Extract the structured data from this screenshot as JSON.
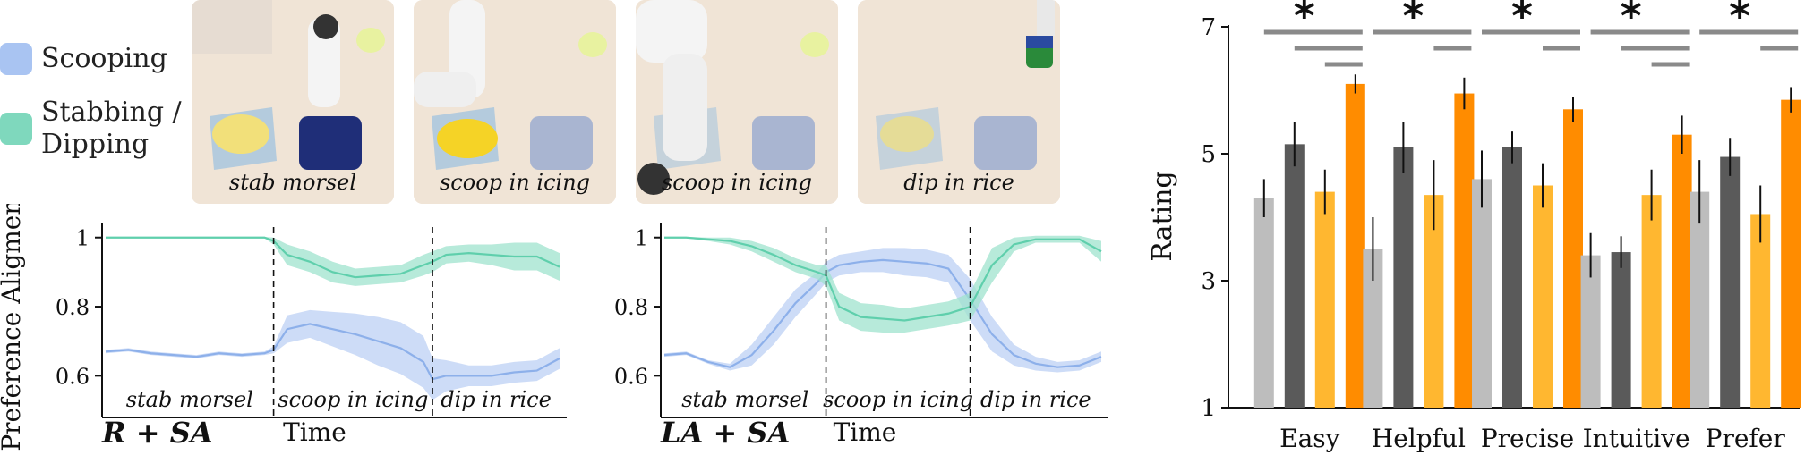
{
  "legend": {
    "scooping_label": "Scooping",
    "stabbing_line1": "Stabbing /",
    "stabbing_line2": "Dipping",
    "scooping_color": "#a9c4f2",
    "stabbing_color": "#7fd8bd"
  },
  "photos": [
    {
      "caption": "stab morsel"
    },
    {
      "caption": "scoop in icing"
    },
    {
      "caption": "scoop in icing"
    },
    {
      "caption": "dip in rice"
    }
  ],
  "line_plots": {
    "ylabel": "Preference Aligment",
    "xlabel": "Time",
    "panels": [
      {
        "method_label": "R + SA",
        "phase_labels": [
          "stab morsel",
          "scoop in icing",
          "dip in rice"
        ]
      },
      {
        "method_label": "LA + SA",
        "phase_labels": [
          "stab morsel",
          "scoop in icing",
          "dip in rice"
        ]
      }
    ]
  },
  "colors": {
    "scoop_line": "#8db0ea",
    "scoop_band": "#bcd0f4",
    "stab_line": "#5fcfac",
    "stab_band": "#9fe3cd",
    "bar_light_gray": "#bdbdbd",
    "bar_dark_gray": "#5a5a5a",
    "bar_light_orange": "#ffb730",
    "bar_dark_orange": "#ff8c00",
    "sig_line": "#8a8a8a"
  },
  "chart_data": [
    {
      "type": "line",
      "panel": "R + SA",
      "xlabel": "Time",
      "ylabel": "Preference Aligment",
      "ylim": [
        0.5,
        1.02
      ],
      "yticks": [
        0.6,
        0.8,
        1
      ],
      "ytick_labels": [
        "0.6",
        "0.8",
        "1"
      ],
      "phase_boundaries": [
        0.37,
        0.72
      ],
      "x": [
        0,
        0.05,
        0.1,
        0.15,
        0.2,
        0.25,
        0.3,
        0.35,
        0.37,
        0.4,
        0.45,
        0.5,
        0.55,
        0.6,
        0.65,
        0.7,
        0.72,
        0.75,
        0.8,
        0.85,
        0.9,
        0.95,
        1.0
      ],
      "series": [
        {
          "key": "scooping",
          "values": [
            0.67,
            0.675,
            0.665,
            0.66,
            0.655,
            0.665,
            0.66,
            0.665,
            0.675,
            0.735,
            0.75,
            0.735,
            0.72,
            0.7,
            0.68,
            0.64,
            0.59,
            0.6,
            0.6,
            0.6,
            0.61,
            0.615,
            0.65
          ],
          "band": [
            0.005,
            0.005,
            0.005,
            0.005,
            0.005,
            0.005,
            0.005,
            0.005,
            0.01,
            0.04,
            0.04,
            0.05,
            0.06,
            0.07,
            0.075,
            0.075,
            0.06,
            0.045,
            0.03,
            0.03,
            0.03,
            0.03,
            0.03
          ]
        },
        {
          "key": "stabbing",
          "values": [
            1.0,
            1.0,
            1.0,
            1.0,
            1.0,
            1.0,
            1.0,
            1.0,
            0.99,
            0.95,
            0.93,
            0.9,
            0.885,
            0.89,
            0.895,
            0.92,
            0.93,
            0.95,
            0.955,
            0.95,
            0.945,
            0.945,
            0.915
          ],
          "band": [
            0.002,
            0.002,
            0.002,
            0.002,
            0.002,
            0.002,
            0.002,
            0.002,
            0.01,
            0.03,
            0.03,
            0.03,
            0.025,
            0.025,
            0.025,
            0.03,
            0.03,
            0.025,
            0.025,
            0.03,
            0.04,
            0.04,
            0.04
          ]
        }
      ]
    },
    {
      "type": "line",
      "panel": "LA + SA",
      "xlabel": "Time",
      "ylabel": "Preference Aligment",
      "ylim": [
        0.5,
        1.02
      ],
      "yticks": [
        0.6,
        0.8,
        1
      ],
      "ytick_labels": [
        "0.6",
        "0.8",
        "1"
      ],
      "phase_boundaries": [
        0.37,
        0.7
      ],
      "x": [
        0,
        0.05,
        0.1,
        0.15,
        0.2,
        0.25,
        0.3,
        0.35,
        0.37,
        0.4,
        0.45,
        0.5,
        0.55,
        0.6,
        0.65,
        0.7,
        0.75,
        0.8,
        0.85,
        0.9,
        0.95,
        1.0
      ],
      "series": [
        {
          "key": "scooping",
          "values": [
            0.66,
            0.665,
            0.64,
            0.625,
            0.66,
            0.73,
            0.81,
            0.87,
            0.9,
            0.92,
            0.93,
            0.935,
            0.93,
            0.925,
            0.91,
            0.82,
            0.72,
            0.66,
            0.635,
            0.625,
            0.63,
            0.655
          ],
          "band": [
            0.005,
            0.005,
            0.005,
            0.01,
            0.03,
            0.04,
            0.04,
            0.03,
            0.03,
            0.03,
            0.03,
            0.035,
            0.04,
            0.04,
            0.04,
            0.06,
            0.05,
            0.03,
            0.02,
            0.015,
            0.015,
            0.015
          ]
        },
        {
          "key": "stabbing",
          "values": [
            1.0,
            1.0,
            0.995,
            0.99,
            0.975,
            0.95,
            0.92,
            0.9,
            0.89,
            0.8,
            0.77,
            0.765,
            0.76,
            0.77,
            0.78,
            0.8,
            0.92,
            0.98,
            0.995,
            0.995,
            0.995,
            0.96
          ],
          "band": [
            0.002,
            0.002,
            0.005,
            0.01,
            0.015,
            0.02,
            0.02,
            0.02,
            0.03,
            0.04,
            0.04,
            0.04,
            0.035,
            0.035,
            0.035,
            0.04,
            0.05,
            0.02,
            0.01,
            0.01,
            0.01,
            0.03
          ]
        }
      ]
    },
    {
      "type": "bar",
      "ylabel": "Rating",
      "ylim": [
        1,
        7
      ],
      "yticks": [
        1,
        3,
        5,
        7
      ],
      "categories": [
        "Easy",
        "Helpful",
        "Precise",
        "Intuitive",
        "Prefer"
      ],
      "series": [
        {
          "values": [
            4.3,
            3.5,
            4.6,
            3.4,
            4.4
          ],
          "err": [
            0.3,
            0.5,
            0.45,
            0.35,
            0.5
          ]
        },
        {
          "values": [
            5.15,
            5.1,
            5.1,
            3.45,
            4.95
          ],
          "err": [
            0.35,
            0.4,
            0.25,
            0.25,
            0.3
          ]
        },
        {
          "values": [
            4.4,
            4.35,
            4.5,
            4.35,
            4.05
          ],
          "err": [
            0.35,
            0.55,
            0.35,
            0.4,
            0.45
          ]
        },
        {
          "values": [
            6.1,
            5.95,
            5.7,
            5.3,
            5.85
          ],
          "err": [
            0.15,
            0.25,
            0.2,
            0.3,
            0.2
          ]
        }
      ],
      "significance": [
        {
          "star": "*",
          "bars": [
            [
              0,
              3
            ],
            [
              1,
              3
            ],
            [
              2,
              3
            ]
          ]
        },
        {
          "star": "*",
          "bars": [
            [
              0,
              3
            ],
            [
              2,
              3
            ]
          ]
        },
        {
          "star": "*",
          "bars": [
            [
              0,
              3
            ],
            [
              2,
              3
            ]
          ]
        },
        {
          "star": "*",
          "bars": [
            [
              0,
              3
            ],
            [
              1,
              3
            ],
            [
              2,
              3
            ]
          ]
        },
        {
          "star": "*",
          "bars": [
            [
              0,
              3
            ],
            [
              2,
              3
            ]
          ]
        }
      ]
    }
  ]
}
